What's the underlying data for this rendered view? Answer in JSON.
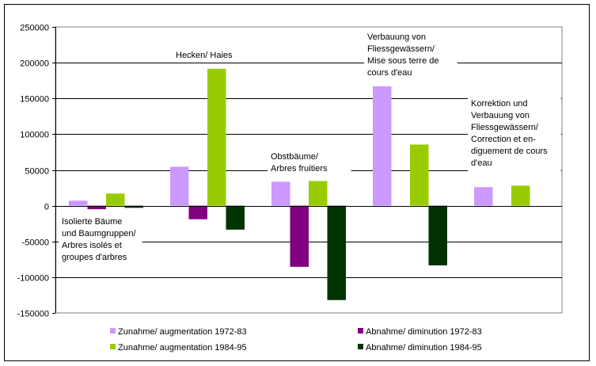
{
  "chart_data": {
    "type": "bar",
    "title": "",
    "xlabel": "",
    "ylabel": "",
    "ylim": [
      -150000,
      250000
    ],
    "yticks": [
      250000,
      200000,
      150000,
      100000,
      50000,
      0,
      -50000,
      -100000,
      -150000
    ],
    "ytick_labels": [
      "250000",
      "200000",
      "150000",
      "100000",
      "50000",
      "0",
      "-50000",
      "-100000",
      "-150000"
    ],
    "grid": true,
    "legend_position": "bottom",
    "categories": [
      "Isolierte Bäume und Baumgruppen/ Arbres isolés et groupes d'arbres",
      "Hecken/ Haies",
      "Obstbäume/ Arbres fruitiers",
      "Verbauung von Fliessgewässern/ Mise sous terre de cours d'eau",
      "Korrektion und Verbauung von Fliessgewässern/ Correction et en-diguement de cours d'eau"
    ],
    "category_label_lines": [
      [
        "Isolierte Bäume",
        "und Baumgruppen/",
        "Arbres isolés et",
        "groupes d'arbres"
      ],
      [
        "Hecken/ Haies"
      ],
      [
        "Obstbäume/",
        "Arbres fruitiers"
      ],
      [
        "Verbauung von",
        "Fliessgewässern/",
        "Mise sous terre de",
        "cours d'eau"
      ],
      [
        "Korrektion und",
        "Verbauung von",
        "Fliessgewässern/",
        "Correction et en-",
        "diguement de cours",
        "d'eau"
      ]
    ],
    "series": [
      {
        "name": "Zunahme/ augmentation 1972-83",
        "color": "#CC99FF",
        "values": [
          7000,
          54500,
          33500,
          167000,
          26000
        ]
      },
      {
        "name": "Abnahme/ diminution 1972-83",
        "color": "#800080",
        "values": [
          -5000,
          -19000,
          -85500,
          0,
          0
        ]
      },
      {
        "name": "Zunahme/ augmentation 1984-95",
        "color": "#99CC00",
        "values": [
          17000,
          191500,
          34500,
          85500,
          28000
        ]
      },
      {
        "name": "Abnahme/ diminution 1984-95",
        "color": "#003300",
        "values": [
          -3000,
          -33500,
          -132000,
          -83500,
          0
        ]
      }
    ]
  }
}
